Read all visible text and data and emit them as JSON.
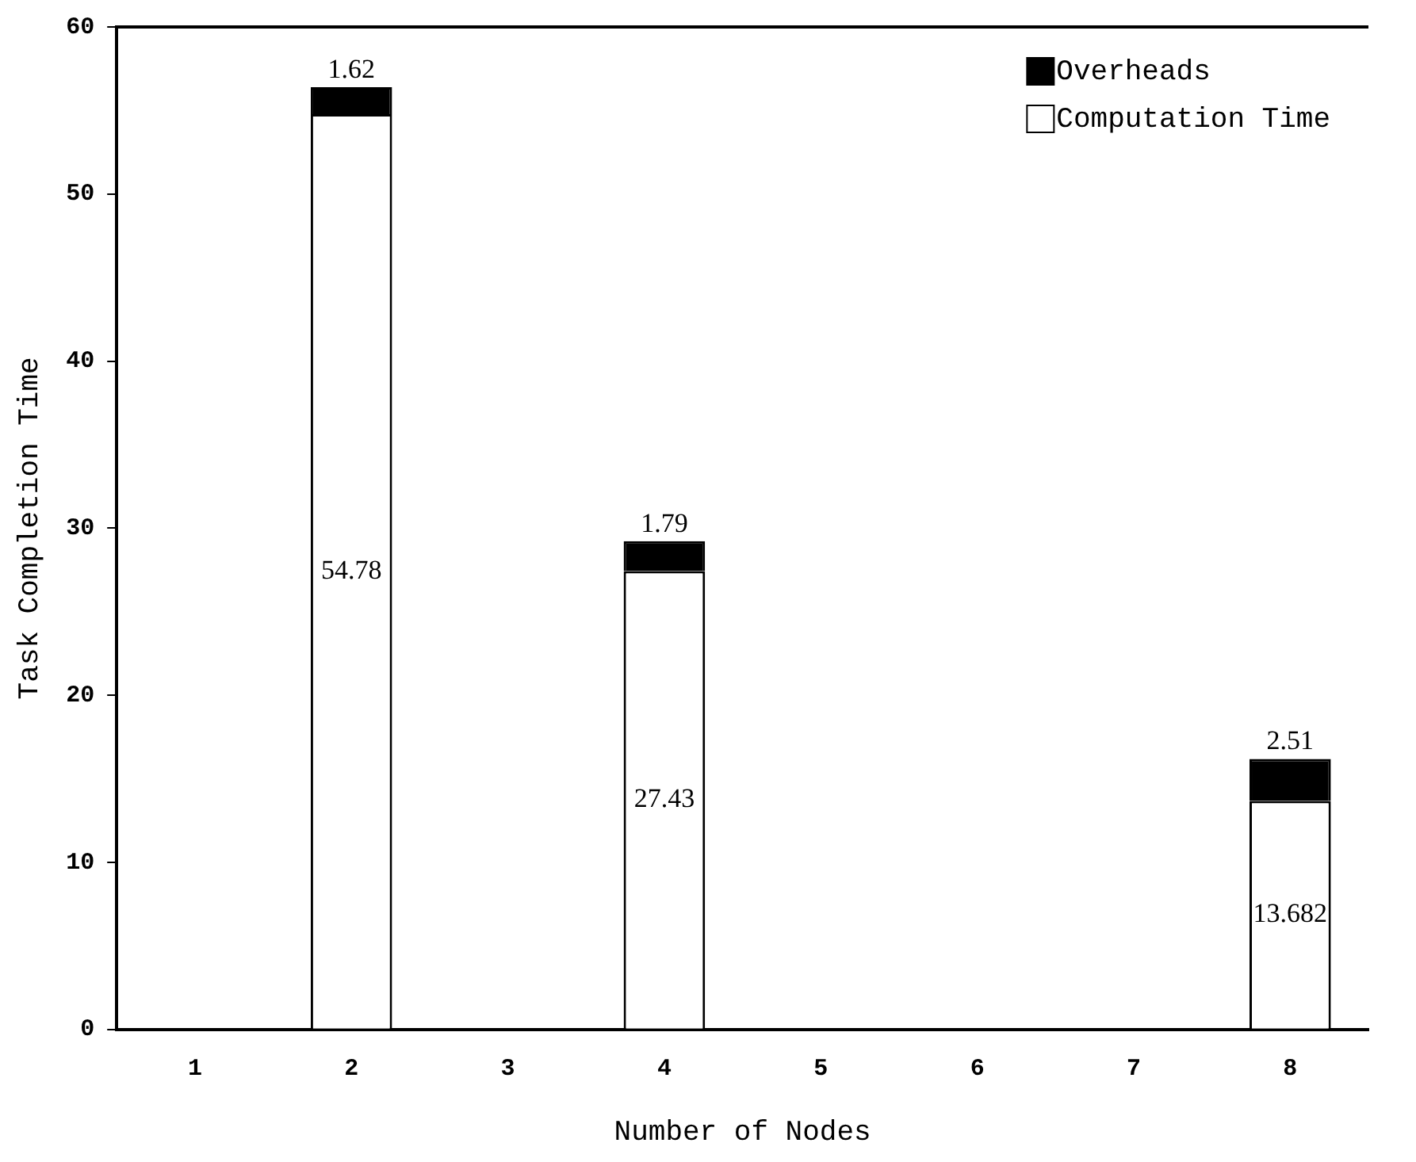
{
  "chart_data": {
    "type": "bar",
    "stacked": true,
    "xlabel": "Number of Nodes",
    "ylabel": "Task Completion Time",
    "categories": [
      "1",
      "2",
      "3",
      "4",
      "5",
      "6",
      "7",
      "8"
    ],
    "series": [
      {
        "name": "Computation Time",
        "color": "#ffffff",
        "values": [
          null,
          54.78,
          null,
          27.43,
          null,
          null,
          null,
          13.682
        ]
      },
      {
        "name": "Overheads",
        "color": "#000000",
        "values": [
          null,
          1.62,
          null,
          1.79,
          null,
          null,
          null,
          2.51
        ]
      }
    ],
    "ylim": [
      0,
      60
    ],
    "yticks": [
      0,
      10,
      20,
      30,
      40,
      50,
      60
    ],
    "grid": false,
    "legend": "top right",
    "data_labels": true
  }
}
